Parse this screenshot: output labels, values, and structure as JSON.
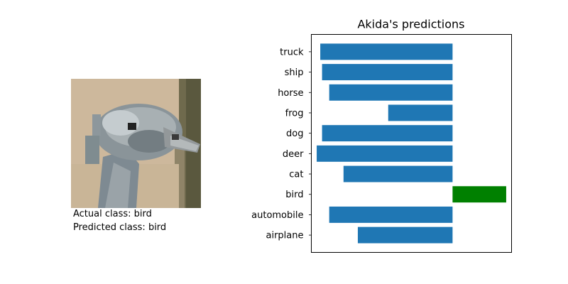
{
  "image_panel": {
    "actual_label": "Actual class: bird",
    "predicted_label": "Predicted class: bird"
  },
  "chart_data": {
    "type": "bar",
    "orientation": "horizontal",
    "title": "Akida's predictions",
    "xlabel": "",
    "ylabel": "",
    "xlim": [
      -7.9,
      3.3
    ],
    "xticks_visible": false,
    "grid": false,
    "categories": [
      "airplane",
      "automobile",
      "bird",
      "cat",
      "deer",
      "dog",
      "frog",
      "horse",
      "ship",
      "truck"
    ],
    "values": [
      -5.3,
      -6.9,
      3.0,
      -6.1,
      -7.6,
      -7.3,
      -3.6,
      -6.9,
      -7.3,
      -7.4
    ],
    "colors": {
      "default": "#1f77b4",
      "highlight": "#008000"
    },
    "highlight_category": "bird"
  }
}
